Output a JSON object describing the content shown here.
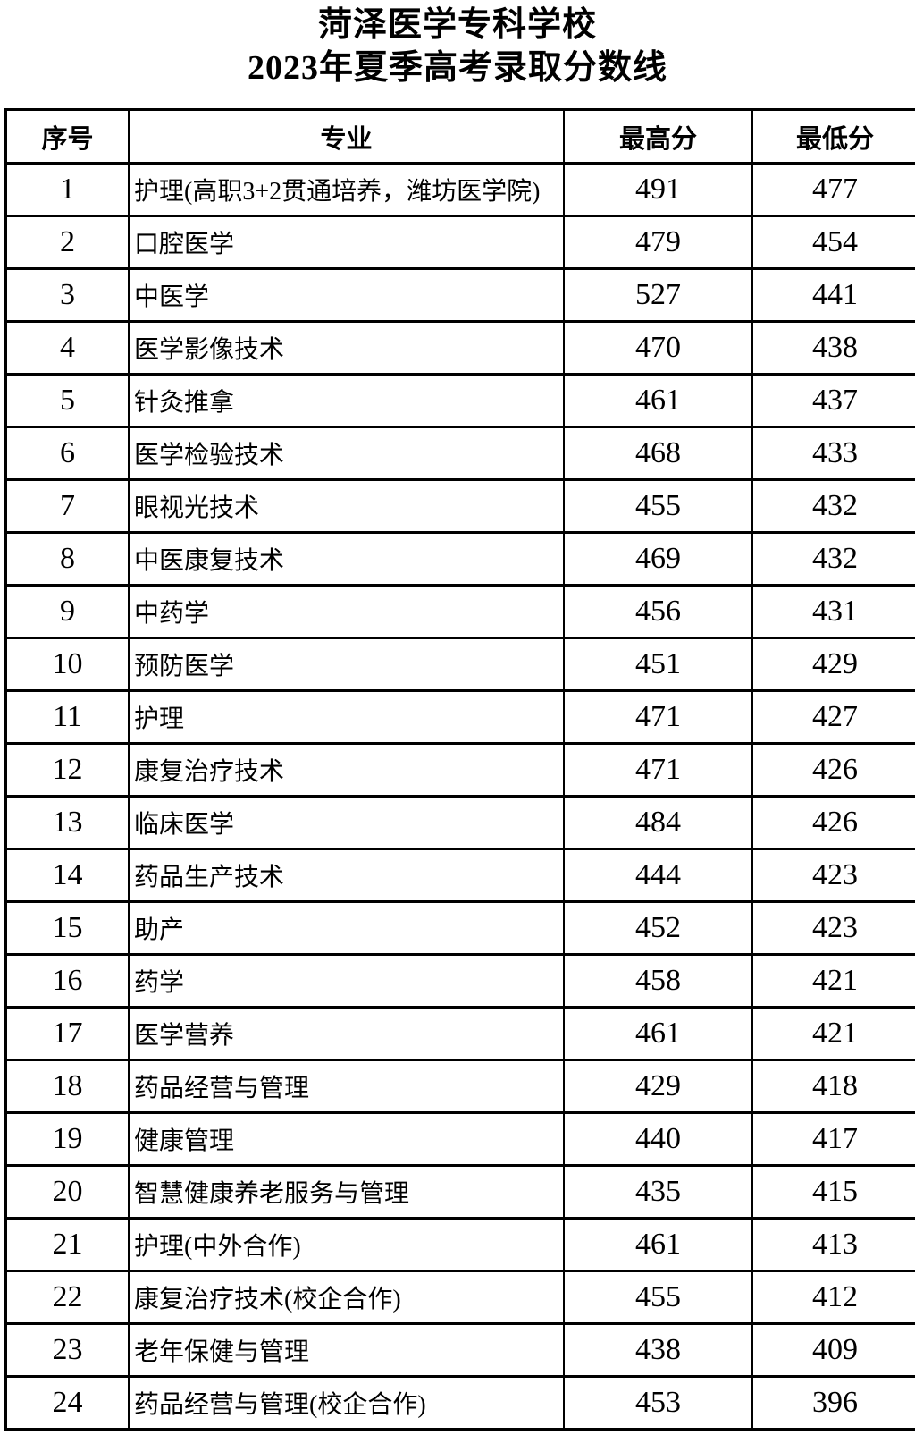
{
  "title": {
    "line1": "菏泽医学专科学校",
    "line2": "2023年夏季高考录取分数线"
  },
  "table": {
    "headers": {
      "no": "序号",
      "major": "专业",
      "max": "最高分",
      "min": "最低分"
    },
    "rows": [
      {
        "no": "1",
        "major": "护理(高职3+2贯通培养，潍坊医学院)",
        "max": "491",
        "min": "477"
      },
      {
        "no": "2",
        "major": "口腔医学",
        "max": "479",
        "min": "454"
      },
      {
        "no": "3",
        "major": "中医学",
        "max": "527",
        "min": "441"
      },
      {
        "no": "4",
        "major": "医学影像技术",
        "max": "470",
        "min": "438"
      },
      {
        "no": "5",
        "major": "针灸推拿",
        "max": "461",
        "min": "437"
      },
      {
        "no": "6",
        "major": "医学检验技术",
        "max": "468",
        "min": "433"
      },
      {
        "no": "7",
        "major": "眼视光技术",
        "max": "455",
        "min": "432"
      },
      {
        "no": "8",
        "major": "中医康复技术",
        "max": "469",
        "min": "432"
      },
      {
        "no": "9",
        "major": "中药学",
        "max": "456",
        "min": "431"
      },
      {
        "no": "10",
        "major": "预防医学",
        "max": "451",
        "min": "429"
      },
      {
        "no": "11",
        "major": "护理",
        "max": "471",
        "min": "427"
      },
      {
        "no": "12",
        "major": "康复治疗技术",
        "max": "471",
        "min": "426"
      },
      {
        "no": "13",
        "major": "临床医学",
        "max": "484",
        "min": "426"
      },
      {
        "no": "14",
        "major": "药品生产技术",
        "max": "444",
        "min": "423"
      },
      {
        "no": "15",
        "major": "助产",
        "max": "452",
        "min": "423"
      },
      {
        "no": "16",
        "major": "药学",
        "max": "458",
        "min": "421"
      },
      {
        "no": "17",
        "major": "医学营养",
        "max": "461",
        "min": "421"
      },
      {
        "no": "18",
        "major": "药品经营与管理",
        "max": "429",
        "min": "418"
      },
      {
        "no": "19",
        "major": "健康管理",
        "max": "440",
        "min": "417"
      },
      {
        "no": "20",
        "major": "智慧健康养老服务与管理",
        "max": "435",
        "min": "415"
      },
      {
        "no": "21",
        "major": "护理(中外合作)",
        "max": "461",
        "min": "413"
      },
      {
        "no": "22",
        "major": "康复治疗技术(校企合作)",
        "max": "455",
        "min": "412"
      },
      {
        "no": "23",
        "major": "老年保健与管理",
        "max": "438",
        "min": "409"
      },
      {
        "no": "24",
        "major": "药品经营与管理(校企合作)",
        "max": "453",
        "min": "396"
      }
    ]
  },
  "colors": {
    "text": "#000000",
    "border": "#000000",
    "background": "#ffffff"
  }
}
